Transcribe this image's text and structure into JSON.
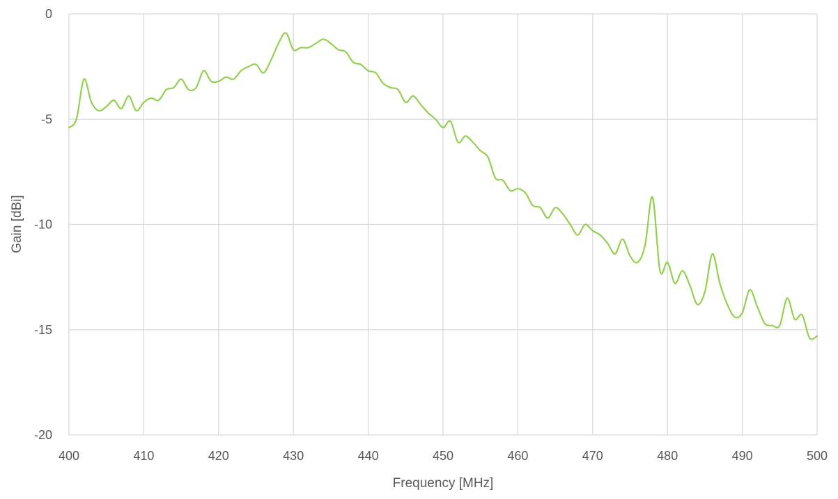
{
  "chart_data": {
    "type": "line",
    "title": "",
    "xlabel": "Frequency [MHz]",
    "ylabel": "Gain [dBi]",
    "xlim": [
      400,
      500
    ],
    "ylim": [
      -20,
      0
    ],
    "x_ticks": [
      400,
      410,
      420,
      430,
      440,
      450,
      460,
      470,
      480,
      490,
      500
    ],
    "y_ticks": [
      0,
      -5,
      -10,
      -15,
      -20
    ],
    "x_tick_labels": [
      "400",
      "410",
      "420",
      "430",
      "440",
      "450",
      "460",
      "470",
      "480",
      "490",
      "500"
    ],
    "y_tick_labels": [
      "0",
      "-5",
      "-10",
      "-15",
      "-20"
    ],
    "grid": true,
    "legend": "none",
    "line_color": "#92d050",
    "grid_color": "#d9d9d9",
    "series": [
      {
        "x": [
          400,
          401,
          402,
          403,
          404,
          405,
          406,
          407,
          408,
          409,
          410,
          411,
          412,
          413,
          414,
          415,
          416,
          417,
          418,
          419,
          420,
          421,
          422,
          423,
          424,
          425,
          426,
          427,
          428,
          429,
          430,
          431,
          432,
          433,
          434,
          435,
          436,
          437,
          438,
          439,
          440,
          441,
          442,
          443,
          444,
          445,
          446,
          447,
          448,
          449,
          450,
          451,
          452,
          453,
          454,
          455,
          456,
          457,
          458,
          459,
          460,
          461,
          462,
          463,
          464,
          465,
          466,
          467,
          468,
          469,
          470,
          471,
          472,
          473,
          474,
          475,
          476,
          477,
          478,
          479,
          480,
          481,
          482,
          483,
          484,
          485,
          486,
          487,
          488,
          489,
          490,
          491,
          492,
          493,
          494,
          495,
          496,
          497,
          498,
          499,
          500
        ],
        "values": [
          -5.4,
          -5.0,
          -3.1,
          -4.2,
          -4.6,
          -4.4,
          -4.1,
          -4.5,
          -3.9,
          -4.6,
          -4.2,
          -4.0,
          -4.1,
          -3.6,
          -3.5,
          -3.1,
          -3.6,
          -3.5,
          -2.7,
          -3.2,
          -3.2,
          -3.0,
          -3.1,
          -2.7,
          -2.5,
          -2.4,
          -2.8,
          -2.2,
          -1.4,
          -0.9,
          -1.7,
          -1.6,
          -1.6,
          -1.4,
          -1.2,
          -1.4,
          -1.7,
          -1.8,
          -2.3,
          -2.4,
          -2.7,
          -2.8,
          -3.3,
          -3.5,
          -3.6,
          -4.2,
          -3.9,
          -4.3,
          -4.7,
          -5.0,
          -5.4,
          -5.1,
          -6.1,
          -5.8,
          -6.1,
          -6.5,
          -6.8,
          -7.8,
          -7.9,
          -8.4,
          -8.3,
          -8.5,
          -9.1,
          -9.2,
          -9.7,
          -9.2,
          -9.5,
          -10.0,
          -10.5,
          -10.0,
          -10.3,
          -10.5,
          -10.9,
          -11.4,
          -10.7,
          -11.5,
          -11.8,
          -11.0,
          -8.7,
          -12.2,
          -11.8,
          -12.8,
          -12.2,
          -12.9,
          -13.8,
          -13.2,
          -11.4,
          -12.8,
          -13.8,
          -14.4,
          -14.2,
          -13.1,
          -13.9,
          -14.7,
          -14.8,
          -14.8,
          -13.5,
          -14.5,
          -14.3,
          -15.4,
          -15.3
        ]
      }
    ]
  }
}
